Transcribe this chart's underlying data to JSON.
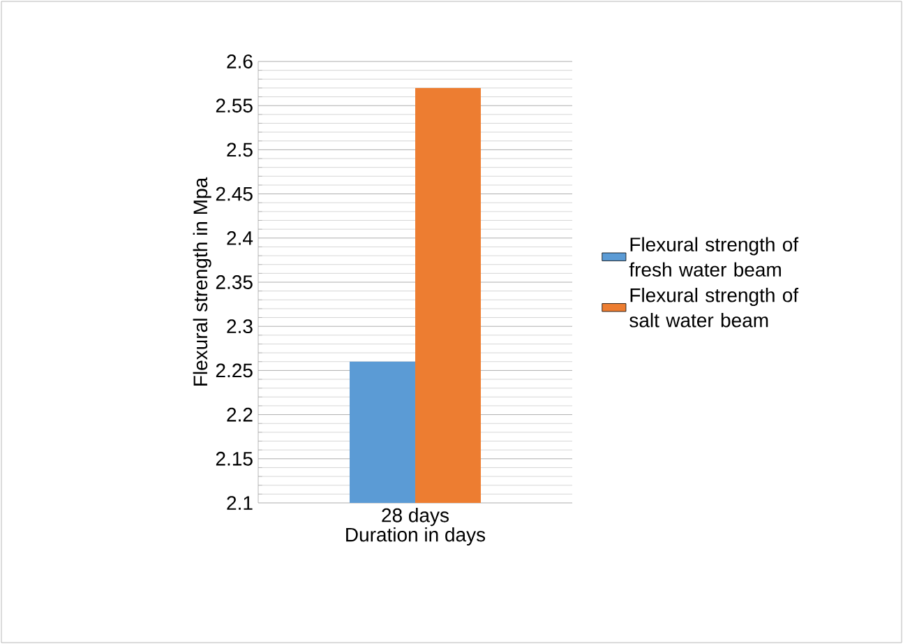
{
  "chart_data": {
    "type": "bar",
    "xlabel": "Duration in days",
    "ylabel": "Flexural strength in Mpa",
    "categories": [
      "28 days"
    ],
    "series": [
      {
        "name": "Flexural strength of fresh water beam",
        "color": "#5b9bd5",
        "values": [
          2.26
        ]
      },
      {
        "name": "Flexural strength of salt water beam",
        "color": "#ed7d31",
        "values": [
          2.57
        ]
      }
    ],
    "ylim": [
      2.1,
      2.6
    ],
    "yticks": [
      2.1,
      2.15,
      2.2,
      2.25,
      2.3,
      2.35,
      2.4,
      2.45,
      2.5,
      2.55,
      2.6
    ],
    "grid": "y",
    "legend": "right"
  }
}
